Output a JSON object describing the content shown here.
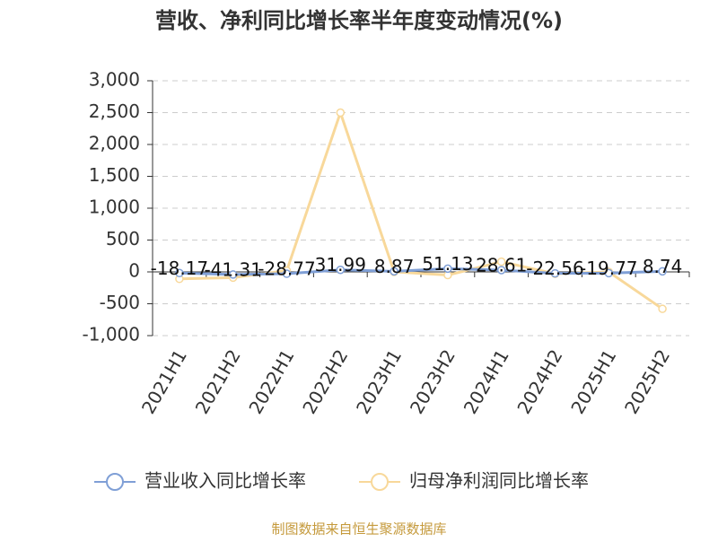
{
  "chart_data": {
    "type": "line",
    "title": "营收、净利同比增长率半年度变动情况(%)",
    "categories": [
      "2021H1",
      "2021H2",
      "2022H1",
      "2022H2",
      "2023H1",
      "2023H2",
      "2024H1",
      "2024H2",
      "2025H1",
      "2025H2"
    ],
    "series": [
      {
        "name": "营业收入同比增长率",
        "color": "#7f9fd6",
        "values": [
          -18.17,
          -41.31,
          -28.77,
          31.99,
          8.87,
          51.13,
          28.61,
          -22.56,
          -19.77,
          8.74
        ]
      },
      {
        "name": "归母净利润同比增长率",
        "color": "#f8d89a",
        "values": [
          -110,
          -90,
          20,
          2500,
          0,
          -50,
          160,
          -30,
          0,
          -580
        ]
      }
    ],
    "ylim": [
      -1000,
      3000
    ],
    "yticks": [
      {
        "value": -1000,
        "label": "-1,000"
      },
      -500,
      0,
      500,
      {
        "value": 1000,
        "label": "1,000"
      },
      {
        "value": 1500,
        "label": "1,500"
      },
      {
        "value": 2000,
        "label": "2,000"
      },
      {
        "value": 2500,
        "label": "2,500"
      },
      {
        "value": 3000,
        "label": "3,000"
      }
    ],
    "grid": true,
    "legend": "bottom",
    "source": "制图数据来自恒生聚源数据库"
  }
}
